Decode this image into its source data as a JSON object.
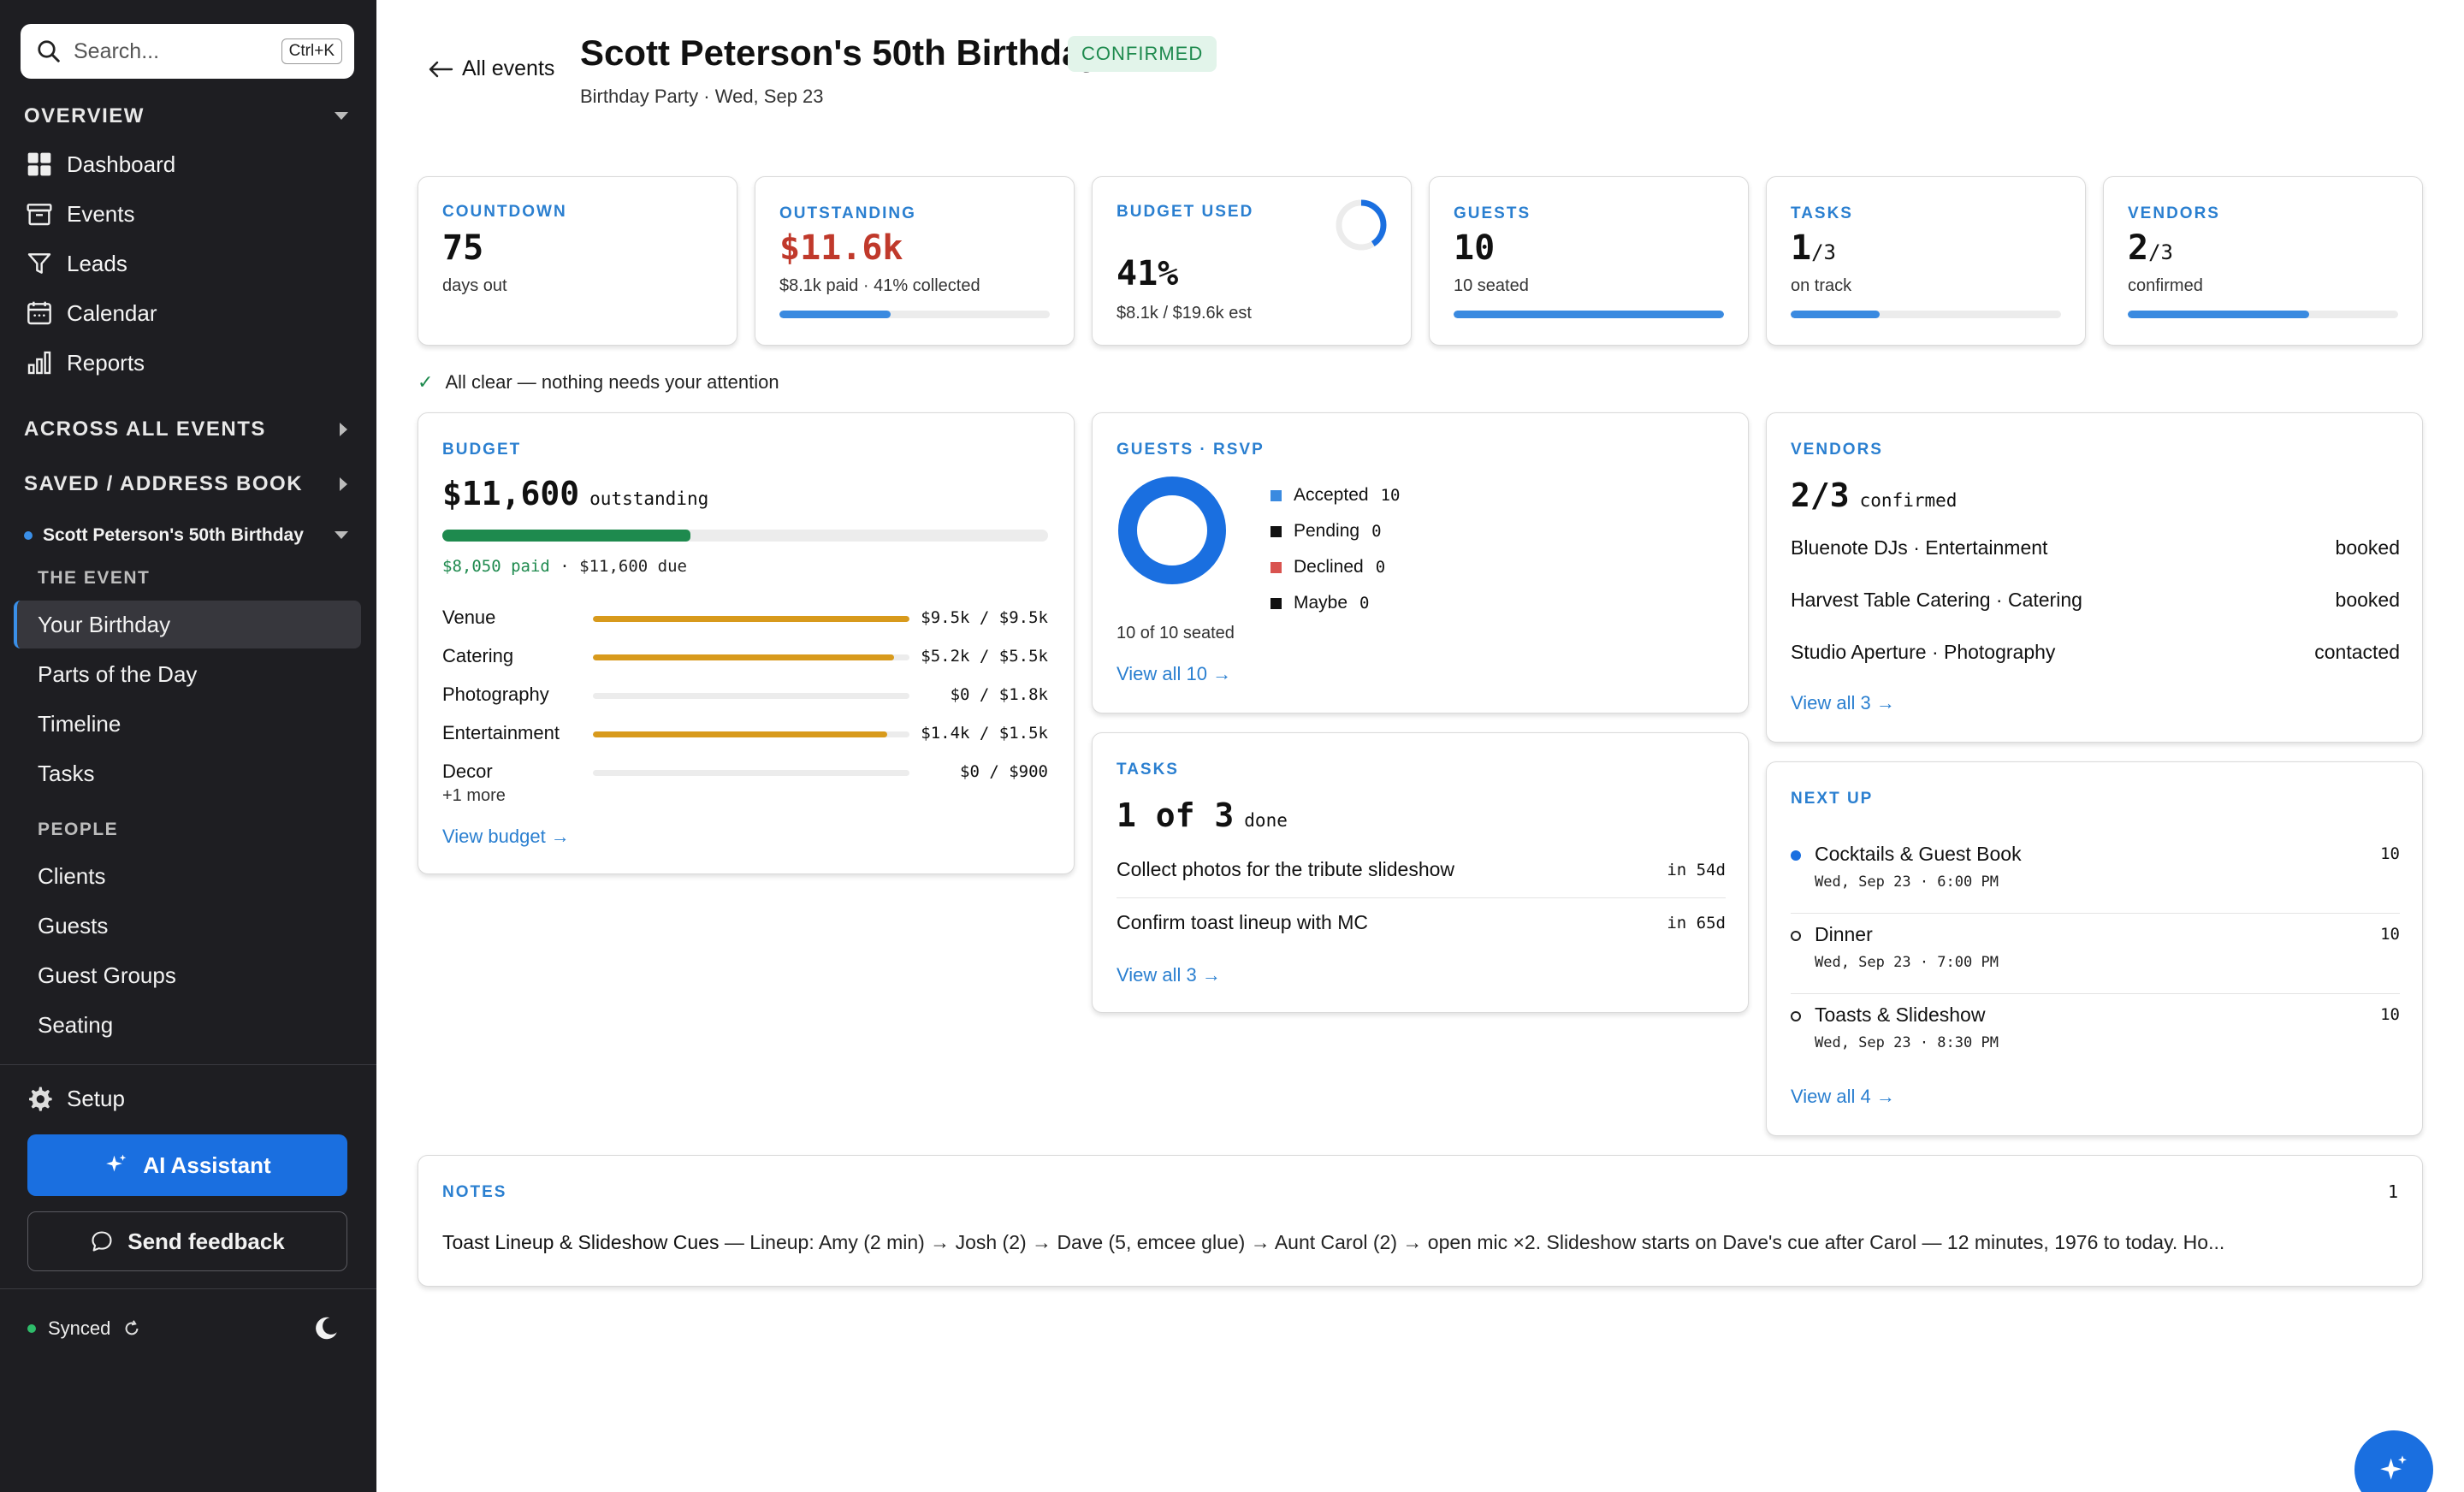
{
  "sidebar": {
    "search_placeholder": "Search...",
    "search_shortcut": "Ctrl+K",
    "overview_label": "OVERVIEW",
    "overview_items": [
      {
        "label": "Dashboard",
        "icon": "grid-icon"
      },
      {
        "label": "Events",
        "icon": "archive-icon"
      },
      {
        "label": "Leads",
        "icon": "filter-icon"
      },
      {
        "label": "Calendar",
        "icon": "calendar-icon"
      },
      {
        "label": "Reports",
        "icon": "bar-chart-icon"
      }
    ],
    "across_label": "ACROSS ALL EVENTS",
    "saved_label": "SAVED / ADDRESS BOOK",
    "event_name": "Scott Peterson's 50th Birthday",
    "the_event_label": "THE EVENT",
    "event_items": [
      "Your Birthday",
      "Parts of the Day",
      "Timeline",
      "Tasks"
    ],
    "people_label": "PEOPLE",
    "people_items": [
      "Clients",
      "Guests",
      "Guest Groups",
      "Seating"
    ],
    "setup_label": "Setup",
    "ai_label": "AI Assistant",
    "feedback_label": "Send feedback",
    "sync_label": "Synced"
  },
  "header": {
    "back_label": "All events",
    "title": "Scott Peterson's 50th Birthday",
    "status": "CONFIRMED",
    "subtitle": "Birthday Party · Wed, Sep 23"
  },
  "stats": {
    "countdown": {
      "label": "COUNTDOWN",
      "value": "75",
      "sub": "days out"
    },
    "outstanding": {
      "label": "OUTSTANDING",
      "value": "$11.6k",
      "sub": "$8.1k paid · 41% collected",
      "progress": 0.41
    },
    "budget_used": {
      "label": "BUDGET USED",
      "value": "41%",
      "sub": "$8.1k / $19.6k est",
      "progress": 0.41
    },
    "guests": {
      "label": "GUESTS",
      "value": "10",
      "sub": "10 seated",
      "progress": 1.0
    },
    "tasks": {
      "label": "TASKS",
      "value": "1",
      "of": "/3",
      "sub": "on track",
      "progress": 0.33
    },
    "vendors": {
      "label": "VENDORS",
      "value": "2",
      "of": "/3",
      "sub": "confirmed",
      "progress": 0.67
    }
  },
  "all_clear": "All clear — nothing needs your attention",
  "budget": {
    "label": "BUDGET",
    "amount": "$11,600",
    "amount_suffix": "outstanding",
    "paid_progress": 0.41,
    "paid": "$8,050 paid",
    "due": " · $11,600 due",
    "lines": [
      {
        "name": "Venue",
        "value": "$9.5k / $9.5k",
        "fraction": 1.0
      },
      {
        "name": "Catering",
        "value": "$5.2k / $5.5k",
        "fraction": 0.95
      },
      {
        "name": "Photography",
        "value": "$0 / $1.8k",
        "fraction": 0
      },
      {
        "name": "Entertainment",
        "value": "$1.4k / $1.5k",
        "fraction": 0.93
      },
      {
        "name": "Decor",
        "value": "$0 / $900",
        "fraction": 0
      }
    ],
    "more": "+1 more",
    "link": "View budget →"
  },
  "rsvp": {
    "label": "GUESTS · RSVP",
    "items": [
      {
        "name": "Accepted",
        "count": "10",
        "color": "#3a8ae0"
      },
      {
        "name": "Pending",
        "count": "0",
        "color": "#111111"
      },
      {
        "name": "Declined",
        "count": "0",
        "color": "#d9534f"
      },
      {
        "name": "Maybe",
        "count": "0",
        "color": "#111111"
      }
    ],
    "seated": "10 of 10 seated",
    "link": "View all 10 →"
  },
  "tasks_card": {
    "label": "TASKS",
    "done_count": "1 of 3",
    "done_suffix": "done",
    "items": [
      {
        "name": "Collect photos for the tribute slideshow",
        "due": "in 54d"
      },
      {
        "name": "Confirm toast lineup with MC",
        "due": "in 65d"
      }
    ],
    "link": "View all 3 →"
  },
  "vendors_card": {
    "label": "VENDORS",
    "count": "2/3",
    "count_suffix": "confirmed",
    "items": [
      {
        "name": "Bluenote DJs · Entertainment",
        "status": "booked"
      },
      {
        "name": "Harvest Table Catering · Catering",
        "status": "booked"
      },
      {
        "name": "Studio Aperture · Photography",
        "status": "contacted"
      }
    ],
    "link": "View all 3 →"
  },
  "next_up": {
    "label": "NEXT UP",
    "items": [
      {
        "name": "Cocktails & Guest Book",
        "when": "Wed, Sep 23 · 6:00 PM",
        "count": "10"
      },
      {
        "name": "Dinner",
        "when": "Wed, Sep 23 · 7:00 PM",
        "count": "10"
      },
      {
        "name": "Toasts & Slideshow",
        "when": "Wed, Sep 23 · 8:30 PM",
        "count": "10"
      }
    ],
    "link": "View all 4 →"
  },
  "notes": {
    "label": "NOTES",
    "count": "1",
    "title": "Toast Lineup & Slideshow Cues",
    "body": " — Lineup: Amy (2 min) → Josh (2) → Dave (5, emcee glue) → Aunt Carol (2) → open mic ×2. Slideshow starts on Dave's cue after Carol — 12 minutes, 1976 to today. Ho..."
  },
  "colors": {
    "accent": "#1a6fe0",
    "outstanding": "#c0392b",
    "paid": "#1e8a4e",
    "budget_bar": "#d89a1c"
  }
}
